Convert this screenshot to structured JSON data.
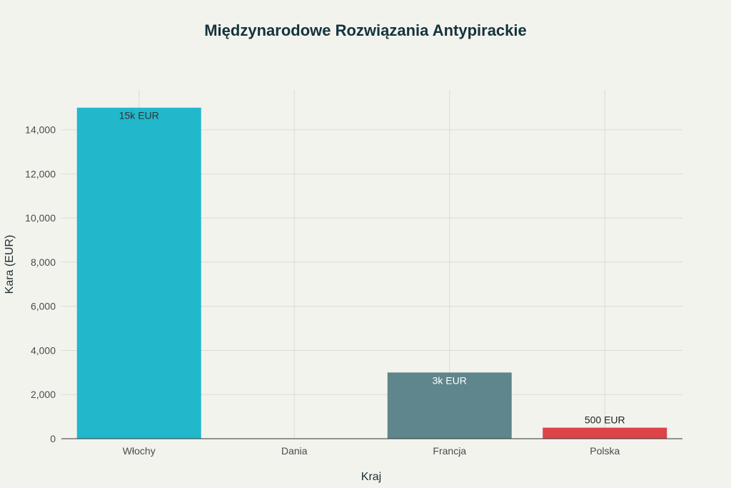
{
  "chart_data": {
    "type": "bar",
    "title": "Międzynarodowe Rozwiązania Antypirackie",
    "xlabel": "Kraj",
    "ylabel": "Kara (EUR)",
    "categories": [
      "Włochy",
      "Dania",
      "Francja",
      "Polska"
    ],
    "values": [
      15000,
      0,
      3000,
      500
    ],
    "data_labels": [
      "15k EUR",
      "",
      "3k EUR",
      "500 EUR"
    ],
    "colors": [
      "#21b8cb",
      "#21b8cb",
      "#5e868c",
      "#dc4447"
    ],
    "label_colors": [
      "#333333",
      "#333333",
      "#ffffff",
      "#222222"
    ],
    "ylim": [
      0,
      15800
    ],
    "yticks": [
      0,
      2000,
      4000,
      6000,
      8000,
      10000,
      12000,
      14000
    ],
    "ytick_labels": [
      "0",
      "2,000",
      "4,000",
      "6,000",
      "8,000",
      "10,000",
      "12,000",
      "14,000"
    ],
    "grid": true,
    "legend": "none"
  }
}
